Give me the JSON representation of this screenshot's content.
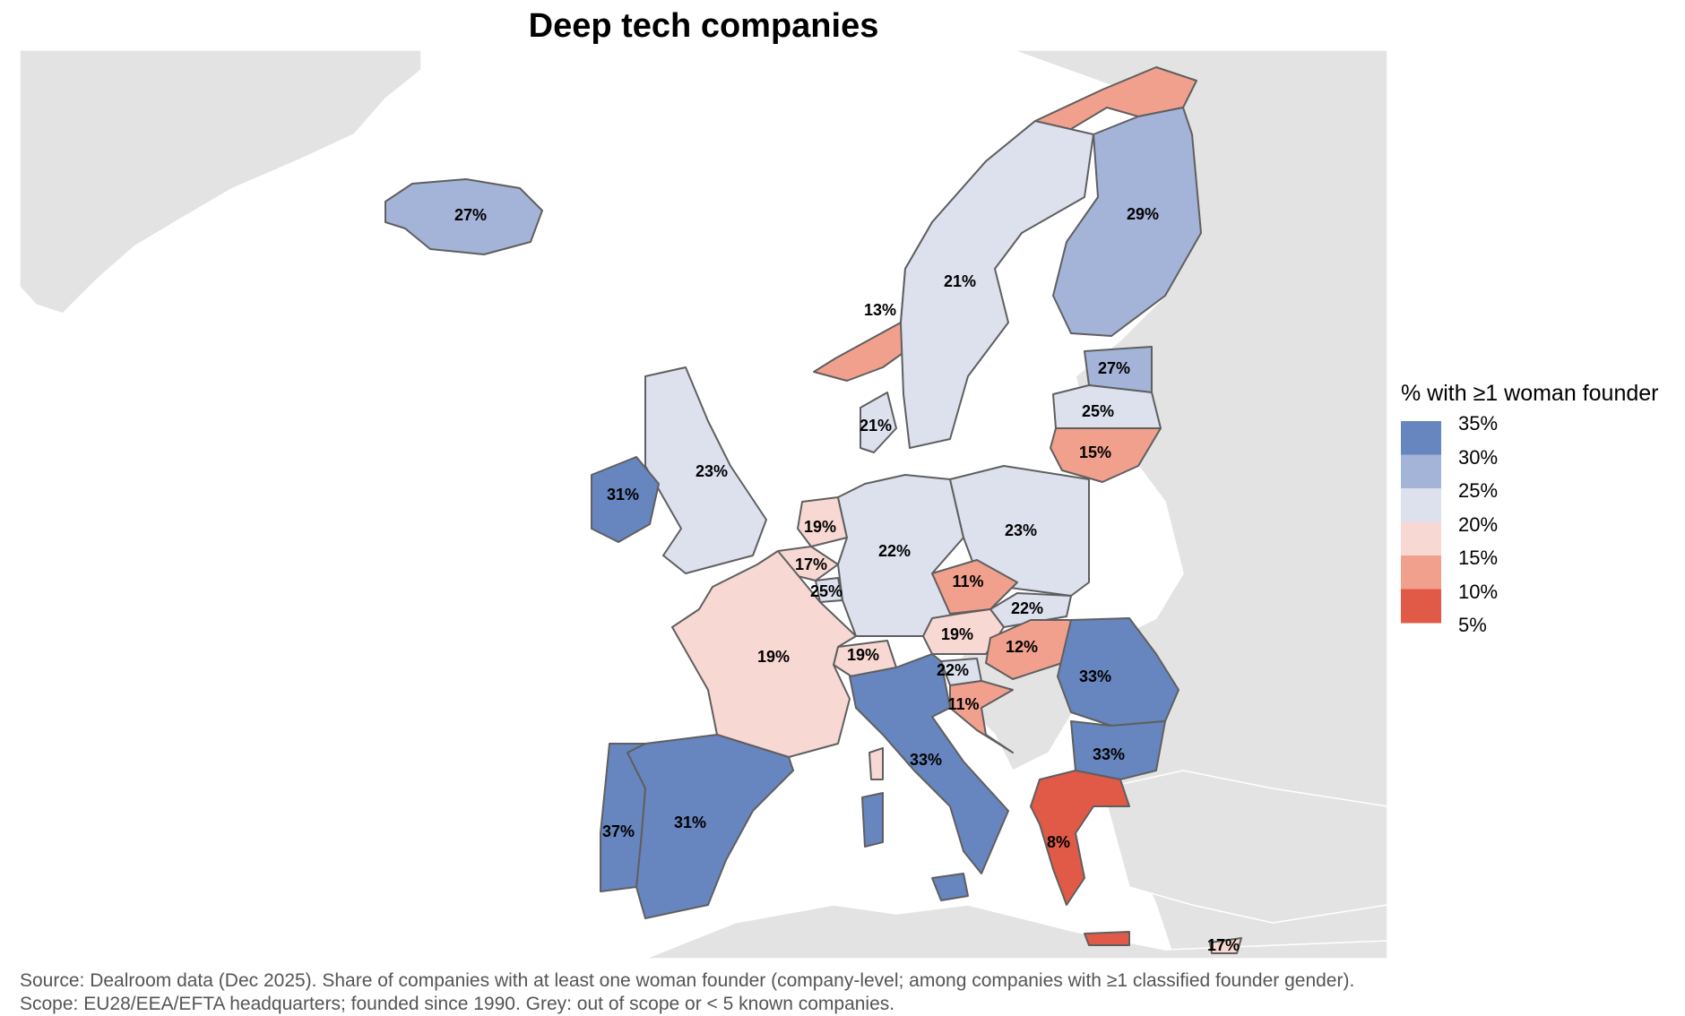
{
  "title": "Deep tech companies",
  "legend": {
    "title": "% with ≥1 woman founder",
    "ticks": [
      "35%",
      "30%",
      "25%",
      "20%",
      "15%",
      "10%",
      "5%"
    ],
    "colors": [
      "#6786bf",
      "#a4b3d8",
      "#dde1ee",
      "#f8d8d3",
      "#f1a08e",
      "#e05a47"
    ]
  },
  "chart_data": {
    "type": "choropleth",
    "title": "Deep tech companies",
    "legend_title": "% with ≥1 woman founder",
    "scale_range": [
      5,
      35
    ],
    "no_data_color": "#e3e3e3",
    "regions": [
      {
        "name": "Iceland",
        "value": 27,
        "label": "27%"
      },
      {
        "name": "Norway",
        "value": 13,
        "label": "13%"
      },
      {
        "name": "Sweden",
        "value": 21,
        "label": "21%"
      },
      {
        "name": "Finland",
        "value": 29,
        "label": "29%"
      },
      {
        "name": "Estonia",
        "value": 27,
        "label": "27%"
      },
      {
        "name": "Latvia",
        "value": 25,
        "label": "25%"
      },
      {
        "name": "Lithuania",
        "value": 15,
        "label": "15%"
      },
      {
        "name": "Denmark",
        "value": 21,
        "label": "21%"
      },
      {
        "name": "United Kingdom",
        "value": 23,
        "label": "23%"
      },
      {
        "name": "Ireland",
        "value": 31,
        "label": "31%"
      },
      {
        "name": "Netherlands",
        "value": 19,
        "label": "19%"
      },
      {
        "name": "Belgium",
        "value": 17,
        "label": "17%"
      },
      {
        "name": "Luxembourg",
        "value": 25,
        "label": "25%"
      },
      {
        "name": "Germany",
        "value": 22,
        "label": "22%"
      },
      {
        "name": "Poland",
        "value": 23,
        "label": "23%"
      },
      {
        "name": "Czechia",
        "value": 11,
        "label": "11%"
      },
      {
        "name": "Slovakia",
        "value": 22,
        "label": "22%"
      },
      {
        "name": "Austria",
        "value": 19,
        "label": "19%"
      },
      {
        "name": "Switzerland",
        "value": 19,
        "label": "19%"
      },
      {
        "name": "Hungary",
        "value": 12,
        "label": "12%"
      },
      {
        "name": "Slovenia",
        "value": 22,
        "label": "22%"
      },
      {
        "name": "Croatia",
        "value": 11,
        "label": "11%"
      },
      {
        "name": "France",
        "value": 19,
        "label": "19%"
      },
      {
        "name": "Romania",
        "value": 33,
        "label": "33%"
      },
      {
        "name": "Bulgaria",
        "value": 33,
        "label": "33%"
      },
      {
        "name": "Italy",
        "value": 33,
        "label": "33%"
      },
      {
        "name": "Spain",
        "value": 31,
        "label": "31%"
      },
      {
        "name": "Portugal",
        "value": 37,
        "label": "37%"
      },
      {
        "name": "Greece",
        "value": 8,
        "label": "8%"
      },
      {
        "name": "Cyprus",
        "value": 17,
        "label": "17%"
      }
    ]
  },
  "footer": {
    "line1": "Source: Dealroom data (Dec 2025). Share of companies with at least one woman founder (company-level; among companies with ≥1 classified founder gender).",
    "line2": "Scope: EU28/EEA/EFTA headquarters; founded since 1990. Grey: out of scope or < 5 known companies."
  }
}
